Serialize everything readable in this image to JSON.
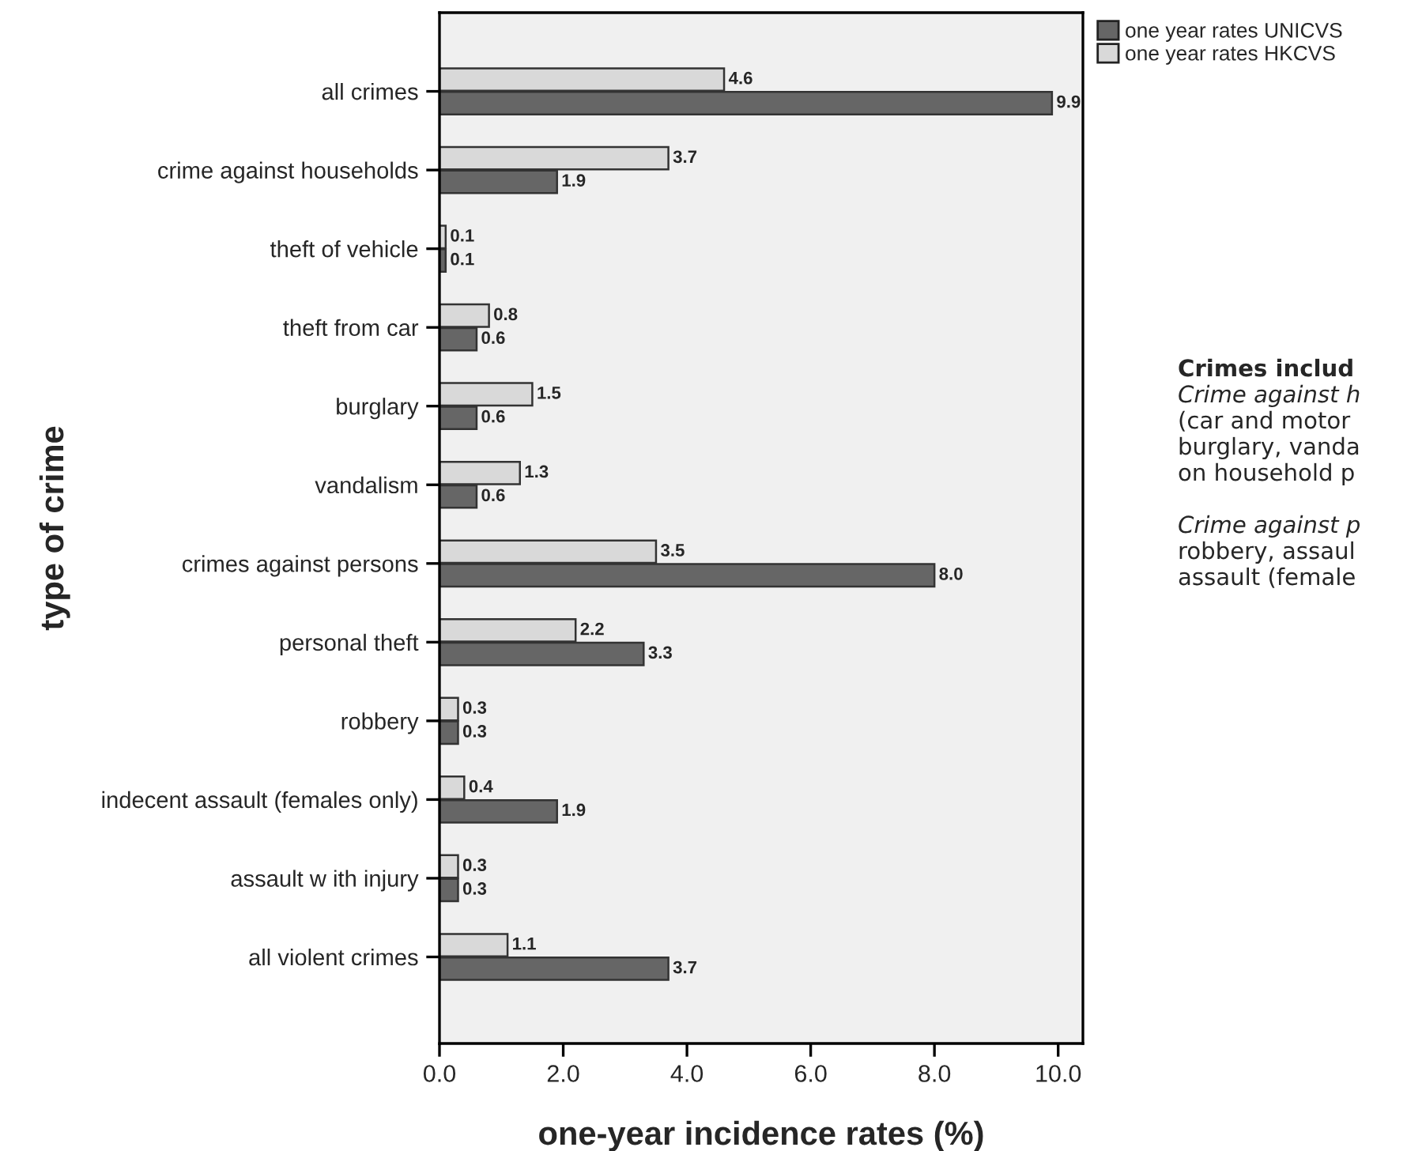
{
  "chart_data": {
    "type": "bar",
    "orientation": "horizontal",
    "xlabel": "one-year incidence rates (%)",
    "ylabel": "type of crime",
    "categories": [
      "all crimes",
      "crime against households",
      "theft of vehicle",
      "theft from car",
      "burglary",
      "vandalism",
      "crimes against persons",
      "personal theft",
      "robbery",
      "indecent assault (females only)",
      "assault w ith injury",
      "all violent crimes"
    ],
    "series": [
      {
        "name": "one year rates UNICVS",
        "color": "#666666",
        "values": [
          9.9,
          1.9,
          0.1,
          0.6,
          0.6,
          0.6,
          8.0,
          3.3,
          0.3,
          1.9,
          0.3,
          3.7
        ],
        "value_labels": [
          "9.9",
          "1.9",
          "0.1",
          "0.6",
          "0.6",
          "0.6",
          "8.0",
          "3.3",
          "0.3",
          "1.9",
          "0.3",
          "3.7"
        ]
      },
      {
        "name": "one year rates HKCVS",
        "color": "#d9d9d9",
        "values": [
          4.6,
          3.7,
          0.1,
          0.8,
          1.5,
          1.3,
          3.5,
          2.2,
          0.3,
          0.4,
          0.3,
          1.1
        ],
        "value_labels": [
          "4.6",
          "3.7",
          "0.1",
          "0.8",
          "1.5",
          "1.3",
          "3.5",
          "2.2",
          "0.3",
          "0.4",
          "0.3",
          "1.1"
        ]
      }
    ],
    "xlim": [
      0,
      10.4
    ],
    "xticks": [
      {
        "value": 0,
        "label": "0.0"
      },
      {
        "value": 2,
        "label": "2.0"
      },
      {
        "value": 4,
        "label": "4.0"
      },
      {
        "value": 6,
        "label": "6.0"
      },
      {
        "value": 8,
        "label": "8.0"
      },
      {
        "value": 10,
        "label": "10.0"
      }
    ],
    "grid": false,
    "legend": "top right",
    "annotations": [
      "Crimes includ",
      "Crime against h",
      "(car and motor",
      "burglary, vanda",
      "on household p",
      "Crime against p",
      "robbery, assaul",
      "assault (female"
    ]
  }
}
